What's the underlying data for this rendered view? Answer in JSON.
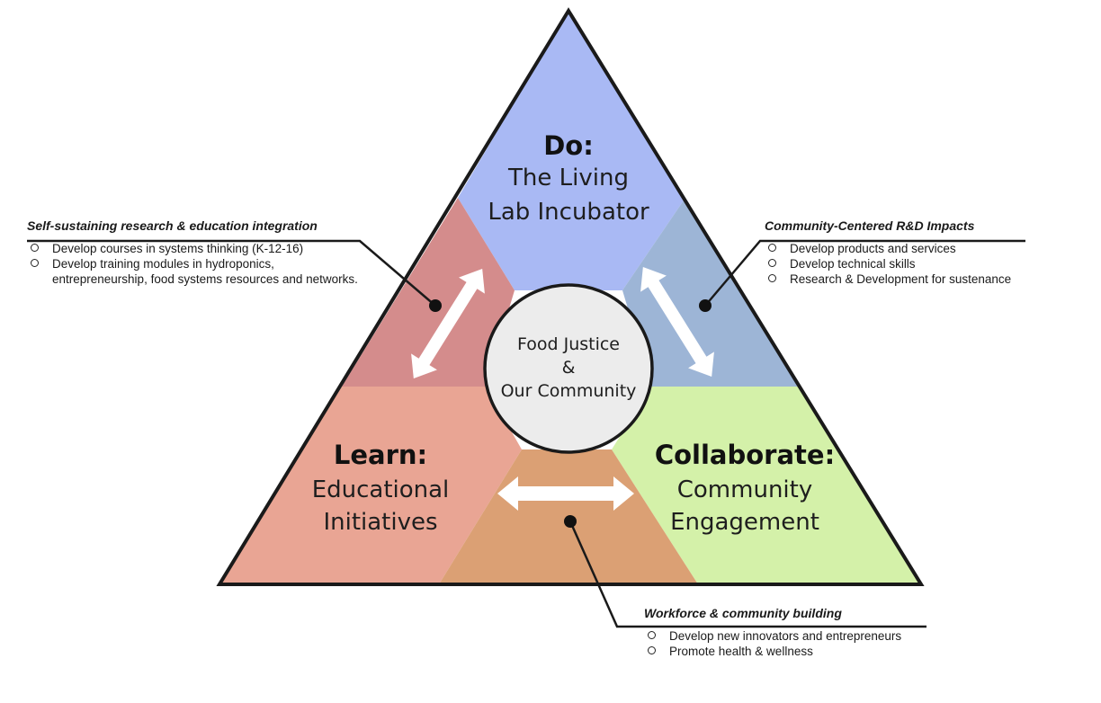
{
  "sections": {
    "top": {
      "title": "Do:",
      "line1": "The Living",
      "line2": "Lab Incubator",
      "color": "#a9b9f4"
    },
    "left": {
      "title": "Learn:",
      "line1": "Educational",
      "line2": "Initiatives",
      "color": "#e9a594"
    },
    "right": {
      "title": "Collaborate:",
      "line1": "Community",
      "line2": "Engagement",
      "color": "#d4f1a9"
    }
  },
  "center": {
    "line1": "Food Justice",
    "line2": "&",
    "line3": "Our Community"
  },
  "callouts": {
    "left": {
      "heading": "Self-sustaining research & education integration",
      "items": [
        "Develop courses in systems thinking (K-12-16)",
        "Develop training modules in hydroponics, entrepreneurship, food systems resources and networks."
      ]
    },
    "right": {
      "heading": "Community-Centered R&D Impacts",
      "items": [
        "Develop products and services",
        "Develop technical skills",
        "Research & Development for sustenance"
      ]
    },
    "bottom": {
      "heading": "Workforce & community building",
      "items": [
        "Develop new innovators and entrepreneurs",
        "Promote health & wellness"
      ]
    }
  },
  "colors": {
    "left_overlap": "#d48c8c",
    "right_overlap": "#9db5d6",
    "bottom_overlap": "#dba074",
    "center_circle": "#ececec",
    "outline": "#1a1a1a"
  }
}
